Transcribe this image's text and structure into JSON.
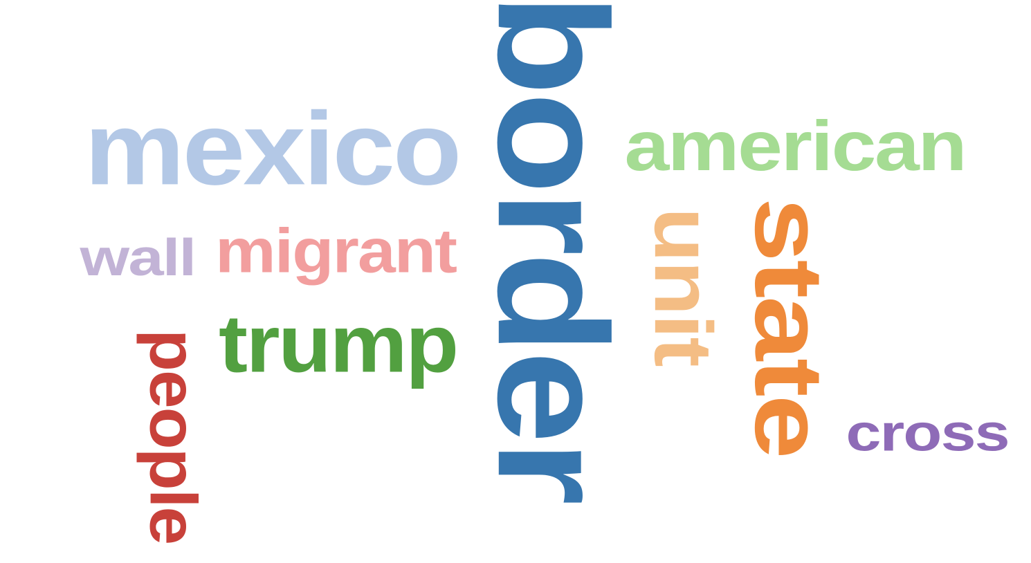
{
  "word_cloud": {
    "words": [
      {
        "text": "border",
        "color": "#3776ae",
        "orientation": "vertical"
      },
      {
        "text": "mexico",
        "color": "#b3c8e6",
        "orientation": "horizontal"
      },
      {
        "text": "american",
        "color": "#a5dc93",
        "orientation": "horizontal"
      },
      {
        "text": "state",
        "color": "#ef8a3a",
        "orientation": "vertical"
      },
      {
        "text": "migrant",
        "color": "#f29e9e",
        "orientation": "horizontal"
      },
      {
        "text": "trump",
        "color": "#52a040",
        "orientation": "horizontal"
      },
      {
        "text": "unit",
        "color": "#f4bd84",
        "orientation": "vertical"
      },
      {
        "text": "people",
        "color": "#c8413a",
        "orientation": "vertical"
      },
      {
        "text": "wall",
        "color": "#c2b3d6",
        "orientation": "horizontal"
      },
      {
        "text": "cross",
        "color": "#8e6bb7",
        "orientation": "horizontal"
      }
    ]
  }
}
